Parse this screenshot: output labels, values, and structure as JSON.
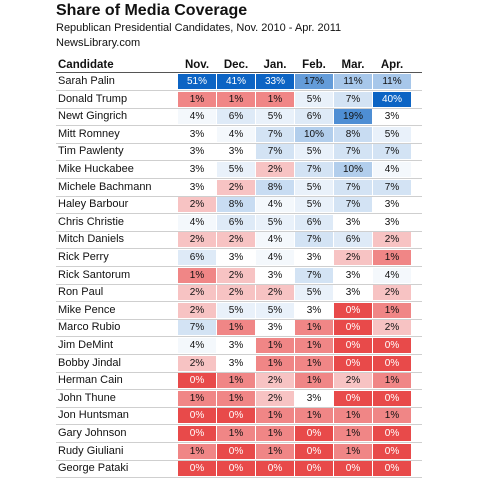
{
  "header": {
    "title": "Share of Media Coverage",
    "subtitle": "Republican Presidential Candidates, Nov. 2010 - Apr. 2011",
    "source": "NewsLibrary.com"
  },
  "chart_data": {
    "type": "heatmap",
    "row_header": "Candidate",
    "columns": [
      "Nov.",
      "Dec.",
      "Jan.",
      "Feb.",
      "Mar.",
      "Apr."
    ],
    "rows": [
      {
        "name": "Sarah Palin",
        "values": [
          "51%",
          "41%",
          "33%",
          "17%",
          "11%",
          "11%"
        ]
      },
      {
        "name": "Donald Trump",
        "values": [
          "1%",
          "1%",
          "1%",
          "5%",
          "7%",
          "40%"
        ]
      },
      {
        "name": "Newt Gingrich",
        "values": [
          "4%",
          "6%",
          "5%",
          "6%",
          "19%",
          "3%"
        ]
      },
      {
        "name": "Mitt Romney",
        "values": [
          "3%",
          "4%",
          "7%",
          "10%",
          "8%",
          "5%"
        ]
      },
      {
        "name": "Tim Pawlenty",
        "values": [
          "3%",
          "3%",
          "7%",
          "5%",
          "7%",
          "7%"
        ]
      },
      {
        "name": "Mike Huckabee",
        "values": [
          "3%",
          "5%",
          "2%",
          "7%",
          "10%",
          "4%"
        ]
      },
      {
        "name": "Michele Bachmann",
        "values": [
          "3%",
          "2%",
          "8%",
          "5%",
          "7%",
          "7%"
        ]
      },
      {
        "name": "Haley Barbour",
        "values": [
          "2%",
          "8%",
          "4%",
          "5%",
          "7%",
          "3%"
        ]
      },
      {
        "name": "Chris Christie",
        "values": [
          "4%",
          "6%",
          "5%",
          "6%",
          "3%",
          "3%"
        ]
      },
      {
        "name": "Mitch Daniels",
        "values": [
          "2%",
          "2%",
          "4%",
          "7%",
          "6%",
          "2%"
        ]
      },
      {
        "name": "Rick Perry",
        "values": [
          "6%",
          "3%",
          "4%",
          "3%",
          "2%",
          "1%"
        ]
      },
      {
        "name": "Rick Santorum",
        "values": [
          "1%",
          "2%",
          "3%",
          "7%",
          "3%",
          "4%"
        ]
      },
      {
        "name": "Ron Paul",
        "values": [
          "2%",
          "2%",
          "2%",
          "5%",
          "3%",
          "2%"
        ]
      },
      {
        "name": "Mike Pence",
        "values": [
          "2%",
          "5%",
          "5%",
          "3%",
          "0%",
          "1%"
        ]
      },
      {
        "name": "Marco Rubio",
        "values": [
          "7%",
          "1%",
          "3%",
          "1%",
          "0%",
          "2%"
        ]
      },
      {
        "name": "Jim DeMint",
        "values": [
          "4%",
          "3%",
          "1%",
          "1%",
          "0%",
          "0%"
        ]
      },
      {
        "name": "Bobby Jindal",
        "values": [
          "2%",
          "3%",
          "1%",
          "1%",
          "0%",
          "0%"
        ]
      },
      {
        "name": "Herman Cain",
        "values": [
          "0%",
          "1%",
          "2%",
          "1%",
          "2%",
          "1%"
        ]
      },
      {
        "name": "John Thune",
        "values": [
          "1%",
          "1%",
          "2%",
          "3%",
          "0%",
          "0%"
        ]
      },
      {
        "name": "Jon Huntsman",
        "values": [
          "0%",
          "0%",
          "1%",
          "1%",
          "1%",
          "1%"
        ]
      },
      {
        "name": "Gary Johnson",
        "values": [
          "0%",
          "1%",
          "1%",
          "0%",
          "1%",
          "0%"
        ]
      },
      {
        "name": "Rudy Giuliani",
        "values": [
          "1%",
          "0%",
          "1%",
          "0%",
          "1%",
          "0%"
        ]
      },
      {
        "name": "George Pataki",
        "values": [
          "0%",
          "0%",
          "0%",
          "0%",
          "0%",
          "0%"
        ]
      }
    ]
  }
}
